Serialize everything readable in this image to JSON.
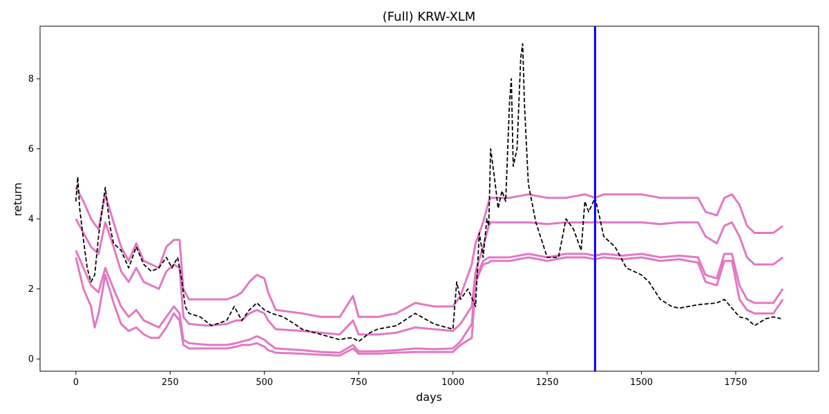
{
  "chart_data": {
    "type": "line",
    "title": "(Full) KRW-XLM",
    "xlabel": "days",
    "ylabel": "return",
    "xlim": [
      -95,
      1970
    ],
    "ylim": [
      -0.35,
      9.5
    ],
    "xticks": [
      0,
      250,
      500,
      750,
      1000,
      1250,
      1500,
      1750
    ],
    "yticks": [
      0,
      2,
      4,
      6,
      8
    ],
    "grid": false,
    "vline": {
      "x": 1377,
      "color": "#0000ff"
    },
    "colors": {
      "price": "#000000",
      "band": "#e377c2"
    },
    "series": [
      {
        "style": "dashed",
        "color": "#000000",
        "x": [
          0,
          5,
          10,
          20,
          30,
          40,
          50,
          60,
          70,
          78,
          90,
          100,
          120,
          140,
          160,
          180,
          200,
          220,
          240,
          255,
          270,
          280,
          290,
          300,
          330,
          360,
          400,
          420,
          440,
          460,
          480,
          500,
          520,
          550,
          580,
          600,
          650,
          700,
          720,
          735,
          750,
          780,
          800,
          850,
          900,
          950,
          1000,
          1010,
          1020,
          1040,
          1060,
          1070,
          1080,
          1090,
          1095,
          1100,
          1110,
          1120,
          1130,
          1140,
          1150,
          1155,
          1160,
          1170,
          1180,
          1185,
          1190,
          1200,
          1220,
          1250,
          1280,
          1300,
          1320,
          1340,
          1350,
          1360,
          1377,
          1390,
          1400,
          1430,
          1460,
          1480,
          1500,
          1520,
          1550,
          1580,
          1600,
          1650,
          1700,
          1720,
          1740,
          1760,
          1780,
          1800,
          1830,
          1850,
          1870
        ],
        "values": [
          4.5,
          5.2,
          4.3,
          3.4,
          2.6,
          2.2,
          2.4,
          3.5,
          4.3,
          4.9,
          3.8,
          3.3,
          3.1,
          2.6,
          3.2,
          2.7,
          2.5,
          2.6,
          2.9,
          2.6,
          2.9,
          2.3,
          1.5,
          1.3,
          1.2,
          0.95,
          1.1,
          1.5,
          1.1,
          1.4,
          1.6,
          1.4,
          1.3,
          1.2,
          1.0,
          0.85,
          0.7,
          0.55,
          0.6,
          0.6,
          0.5,
          0.75,
          0.85,
          0.95,
          1.3,
          1.0,
          0.85,
          2.2,
          1.7,
          2.0,
          1.5,
          3.6,
          2.9,
          4.0,
          3.8,
          6.0,
          5.2,
          4.3,
          4.8,
          4.5,
          7.3,
          8.0,
          5.5,
          6.0,
          8.6,
          9.0,
          7.2,
          5.0,
          3.9,
          2.9,
          2.9,
          4.0,
          3.7,
          3.1,
          4.5,
          4.2,
          4.6,
          4.0,
          3.5,
          3.2,
          2.6,
          2.5,
          2.4,
          2.2,
          1.7,
          1.5,
          1.45,
          1.55,
          1.6,
          1.7,
          1.45,
          1.2,
          1.15,
          0.95,
          1.15,
          1.2,
          1.15
        ]
      },
      {
        "style": "solid",
        "color": "#e377c2",
        "x": [
          0,
          20,
          40,
          60,
          78,
          100,
          120,
          140,
          160,
          180,
          200,
          220,
          240,
          260,
          275,
          285,
          300,
          350,
          400,
          425,
          440,
          460,
          480,
          500,
          510,
          530,
          600,
          650,
          700,
          735,
          750,
          800,
          850,
          900,
          950,
          1000,
          1020,
          1050,
          1060,
          1080,
          1095,
          1100,
          1150,
          1200,
          1250,
          1300,
          1350,
          1377,
          1400,
          1450,
          1500,
          1550,
          1600,
          1650,
          1670,
          1700,
          1720,
          1740,
          1760,
          1780,
          1800,
          1850,
          1875
        ],
        "values": [
          4.9,
          4.5,
          4.0,
          3.7,
          4.7,
          3.9,
          3.2,
          2.8,
          3.3,
          2.8,
          2.7,
          2.6,
          3.2,
          3.4,
          3.4,
          2.0,
          1.7,
          1.7,
          1.7,
          1.8,
          1.9,
          2.2,
          2.4,
          2.3,
          1.9,
          1.4,
          1.3,
          1.2,
          1.2,
          1.8,
          1.2,
          1.2,
          1.3,
          1.6,
          1.5,
          1.5,
          1.8,
          2.7,
          3.3,
          3.9,
          4.5,
          4.6,
          4.6,
          4.7,
          4.6,
          4.6,
          4.7,
          4.6,
          4.7,
          4.7,
          4.7,
          4.6,
          4.6,
          4.6,
          4.2,
          4.1,
          4.6,
          4.7,
          4.4,
          3.8,
          3.6,
          3.6,
          3.8
        ]
      },
      {
        "style": "solid",
        "color": "#e377c2",
        "x": [
          0,
          20,
          40,
          60,
          78,
          100,
          120,
          140,
          160,
          180,
          200,
          220,
          240,
          260,
          275,
          285,
          300,
          350,
          400,
          425,
          440,
          460,
          480,
          500,
          510,
          530,
          600,
          650,
          700,
          735,
          750,
          800,
          850,
          900,
          950,
          1000,
          1020,
          1050,
          1060,
          1080,
          1095,
          1100,
          1150,
          1200,
          1250,
          1300,
          1350,
          1377,
          1400,
          1450,
          1500,
          1550,
          1600,
          1650,
          1670,
          1700,
          1720,
          1740,
          1760,
          1780,
          1800,
          1850,
          1875
        ],
        "values": [
          4.0,
          3.6,
          3.2,
          3.0,
          3.9,
          3.2,
          2.5,
          2.2,
          2.6,
          2.2,
          2.1,
          2.0,
          2.5,
          2.7,
          2.6,
          1.2,
          1.0,
          0.95,
          1.0,
          1.1,
          1.1,
          1.3,
          1.4,
          1.3,
          1.1,
          0.85,
          0.8,
          0.75,
          0.7,
          1.1,
          0.7,
          0.7,
          0.75,
          0.9,
          0.85,
          0.8,
          1.0,
          1.5,
          2.5,
          3.2,
          3.8,
          3.9,
          3.9,
          3.9,
          3.85,
          3.9,
          3.9,
          3.9,
          3.9,
          3.9,
          3.9,
          3.85,
          3.9,
          3.9,
          3.5,
          3.3,
          3.8,
          3.9,
          3.5,
          2.9,
          2.7,
          2.7,
          2.9
        ]
      },
      {
        "style": "solid",
        "color": "#e377c2",
        "x": [
          0,
          20,
          40,
          60,
          78,
          100,
          120,
          140,
          160,
          180,
          200,
          220,
          240,
          260,
          275,
          285,
          300,
          350,
          400,
          425,
          440,
          460,
          480,
          500,
          510,
          530,
          600,
          650,
          700,
          735,
          750,
          800,
          850,
          900,
          950,
          1000,
          1020,
          1050,
          1060,
          1080,
          1095,
          1100,
          1150,
          1200,
          1250,
          1300,
          1350,
          1377,
          1400,
          1450,
          1500,
          1550,
          1600,
          1650,
          1670,
          1700,
          1720,
          1740,
          1760,
          1780,
          1800,
          1850,
          1875
        ],
        "values": [
          3.1,
          2.6,
          2.1,
          1.9,
          2.6,
          2.0,
          1.5,
          1.2,
          1.4,
          1.1,
          1.0,
          0.9,
          1.2,
          1.5,
          1.3,
          0.55,
          0.45,
          0.4,
          0.4,
          0.45,
          0.5,
          0.55,
          0.65,
          0.55,
          0.45,
          0.3,
          0.25,
          0.2,
          0.18,
          0.4,
          0.22,
          0.22,
          0.25,
          0.3,
          0.28,
          0.3,
          0.5,
          1.0,
          2.3,
          2.8,
          2.9,
          2.9,
          2.9,
          3.0,
          2.9,
          3.0,
          3.0,
          2.95,
          3.0,
          2.95,
          3.0,
          2.9,
          2.95,
          2.9,
          2.4,
          2.3,
          3.0,
          3.0,
          2.1,
          1.7,
          1.6,
          1.6,
          2.0
        ]
      },
      {
        "style": "solid",
        "color": "#e377c2",
        "x": [
          0,
          20,
          40,
          50,
          60,
          78,
          100,
          120,
          140,
          160,
          180,
          200,
          220,
          240,
          260,
          275,
          285,
          300,
          350,
          400,
          425,
          440,
          460,
          480,
          500,
          510,
          530,
          600,
          650,
          700,
          735,
          750,
          800,
          850,
          900,
          950,
          1000,
          1020,
          1050,
          1060,
          1080,
          1095,
          1100,
          1150,
          1200,
          1250,
          1300,
          1350,
          1377,
          1400,
          1450,
          1500,
          1550,
          1600,
          1650,
          1670,
          1700,
          1720,
          1740,
          1760,
          1780,
          1800,
          1850,
          1875
        ],
        "values": [
          2.9,
          2.0,
          1.5,
          0.9,
          1.3,
          2.4,
          1.6,
          1.0,
          0.8,
          0.9,
          0.7,
          0.6,
          0.6,
          0.9,
          1.3,
          1.1,
          0.4,
          0.3,
          0.3,
          0.3,
          0.35,
          0.4,
          0.4,
          0.45,
          0.35,
          0.25,
          0.18,
          0.15,
          0.12,
          0.1,
          0.3,
          0.15,
          0.15,
          0.18,
          0.2,
          0.2,
          0.2,
          0.4,
          0.6,
          2.2,
          2.7,
          2.75,
          2.8,
          2.8,
          2.9,
          2.8,
          2.9,
          2.9,
          2.85,
          2.9,
          2.85,
          2.9,
          2.8,
          2.85,
          2.75,
          2.2,
          2.1,
          2.8,
          2.8,
          1.7,
          1.4,
          1.3,
          1.3,
          1.7
        ]
      }
    ]
  }
}
